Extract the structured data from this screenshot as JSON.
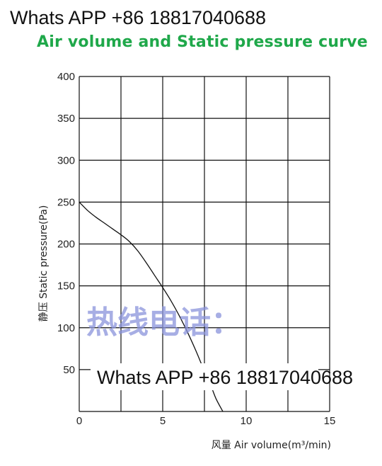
{
  "header": {
    "contact": "Whats APP +86 18817040688"
  },
  "chart_data": {
    "type": "line",
    "title": "Air volume and Static pressure curve",
    "xlabel": "风量  Air volume(m³/min)",
    "ylabel": "静压 Static pressure(Pa)",
    "xlim": [
      0,
      15
    ],
    "ylim": [
      0,
      400
    ],
    "x_ticks": [
      0,
      5,
      10,
      15
    ],
    "y_ticks": [
      50,
      100,
      150,
      200,
      250,
      300,
      350,
      400
    ],
    "x_grid": [
      0,
      2.5,
      5,
      7.5,
      10,
      12.5,
      15
    ],
    "y_grid": [
      0,
      50,
      100,
      150,
      200,
      250,
      300,
      350,
      400
    ],
    "grid": true,
    "series": [
      {
        "x": [
          0,
          0.5,
          1.0,
          1.5,
          2.0,
          2.5,
          3.0,
          3.5,
          4.0,
          4.5,
          5.0,
          5.5,
          6.0,
          6.5,
          7.0,
          7.5,
          7.9,
          8.2,
          8.6
        ],
        "y": [
          250,
          240,
          232,
          225,
          218,
          211,
          203,
          192,
          178,
          163,
          148,
          132,
          114,
          94,
          72,
          48,
          30,
          15,
          0
        ],
        "color": "#111111"
      }
    ],
    "title_color": "#1fa84a",
    "watermark": {
      "cn": "热线电话：",
      "en": "Whats APP +86 18817040688",
      "cn_color": "#8a93dc"
    }
  }
}
